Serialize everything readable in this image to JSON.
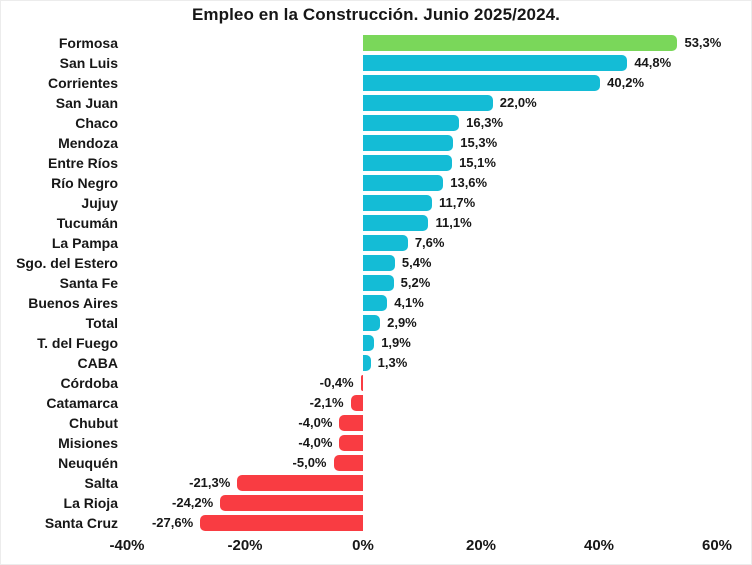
{
  "chart_data": {
    "type": "bar",
    "orientation": "horizontal",
    "title": "Empleo en la Construcción. Junio 2025/2024.",
    "xlabel": "",
    "ylabel": "",
    "categories": [
      "Formosa",
      "San Luis",
      "Corrientes",
      "San Juan",
      "Chaco",
      "Mendoza",
      "Entre Ríos",
      "Río Negro",
      "Jujuy",
      "Tucumán",
      "La Pampa",
      "Sgo. del Estero",
      "Santa Fe",
      "Buenos Aires",
      "Total",
      "T. del Fuego",
      "CABA",
      "Córdoba",
      "Catamarca",
      "Chubut",
      "Misiones",
      "Neuquén",
      "Salta",
      "La Rioja",
      "Santa Cruz"
    ],
    "values": [
      53.3,
      44.8,
      40.2,
      22.0,
      16.3,
      15.3,
      15.1,
      13.6,
      11.7,
      11.1,
      7.6,
      5.4,
      5.2,
      4.1,
      2.9,
      1.9,
      1.3,
      -0.4,
      -2.1,
      -4.0,
      -4.0,
      -5.0,
      -21.3,
      -24.2,
      -27.6
    ],
    "value_labels": [
      "53,3%",
      "44,8%",
      "40,2%",
      "22,0%",
      "16,3%",
      "15,3%",
      "15,1%",
      "13,6%",
      "11,7%",
      "11,1%",
      "7,6%",
      "5,4%",
      "5,2%",
      "4,1%",
      "2,9%",
      "1,9%",
      "1,3%",
      "-0,4%",
      "-2,1%",
      "-4,0%",
      "-4,0%",
      "-5,0%",
      "-21,3%",
      "-24,2%",
      "-27,6%"
    ],
    "bar_colors": [
      "#7AD75A",
      "#14BCD6",
      "#14BCD6",
      "#14BCD6",
      "#14BCD6",
      "#14BCD6",
      "#14BCD6",
      "#14BCD6",
      "#14BCD6",
      "#14BCD6",
      "#14BCD6",
      "#14BCD6",
      "#14BCD6",
      "#14BCD6",
      "#14BCD6",
      "#14BCD6",
      "#14BCD6",
      "#F93C42",
      "#F93C42",
      "#F93C42",
      "#F93C42",
      "#F93C42",
      "#F93C42",
      "#F93C42",
      "#F93C42"
    ],
    "color_legend": {
      "highlight_green": "#7AD75A",
      "positive_cyan": "#14BCD6",
      "negative_red": "#F93C42"
    },
    "xlim": [
      -40,
      60
    ],
    "x_tick_values": [
      -40,
      -20,
      0,
      20,
      40,
      60
    ],
    "x_tick_labels": [
      "-40%",
      "-20%",
      "0%",
      "20%",
      "40%",
      "60%"
    ],
    "grid": false,
    "legend_position": "none",
    "data_labels": "outside-end"
  }
}
